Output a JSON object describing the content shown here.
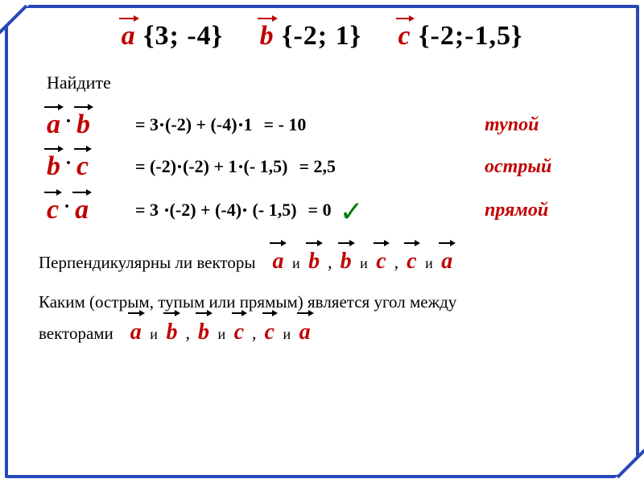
{
  "colors": {
    "border": "#2748b8",
    "red": "#c00000",
    "green": "#008000",
    "black": "#000000"
  },
  "header": {
    "a_letter": "a",
    "a_coords": " {3; -4}",
    "b_letter": "b",
    "b_coords": " {-2; 1}",
    "c_letter": "c",
    "c_coords": " {-2;-1,5}"
  },
  "find_label": "Найдите",
  "rows": [
    {
      "v1": "a",
      "v2": "b",
      "calc": "= 3   (-2) + (-4)   1",
      "calc_parts": [
        "= 3",
        "(-2) + (-4)",
        "1"
      ],
      "result": "= - 10",
      "angle": "тупой",
      "has_check": false
    },
    {
      "v1": "b",
      "v2": "c",
      "calc_parts": [
        "= (-2)",
        "(-2) + 1",
        "(- 1,5)"
      ],
      "result": "= 2,5",
      "angle": "острый",
      "has_check": false
    },
    {
      "v1": "c",
      "v2": "a",
      "calc_parts": [
        "= 3 ",
        "(-2) + (-4)",
        " (- 1,5)"
      ],
      "result": "= 0",
      "angle": "прямой",
      "has_check": true
    }
  ],
  "q1": {
    "text": "Перпендикулярны ли векторы",
    "pairs": [
      {
        "v1": "a",
        "sep": "и",
        "v2": "b"
      },
      {
        "v1": "b",
        "sep": "и",
        "v2": "c"
      },
      {
        "v1": "c",
        "sep": "и",
        "v2": "a"
      }
    ]
  },
  "q2": {
    "text1": "Каким (острым, тупым или прямым) является угол между",
    "text2": "векторами",
    "pairs": [
      {
        "v1": "a",
        "sep": "и",
        "v2": "b"
      },
      {
        "v1": "b",
        "sep": "и",
        "v2": "c"
      },
      {
        "v1": "c",
        "sep": "и",
        "v2": "a"
      }
    ]
  }
}
